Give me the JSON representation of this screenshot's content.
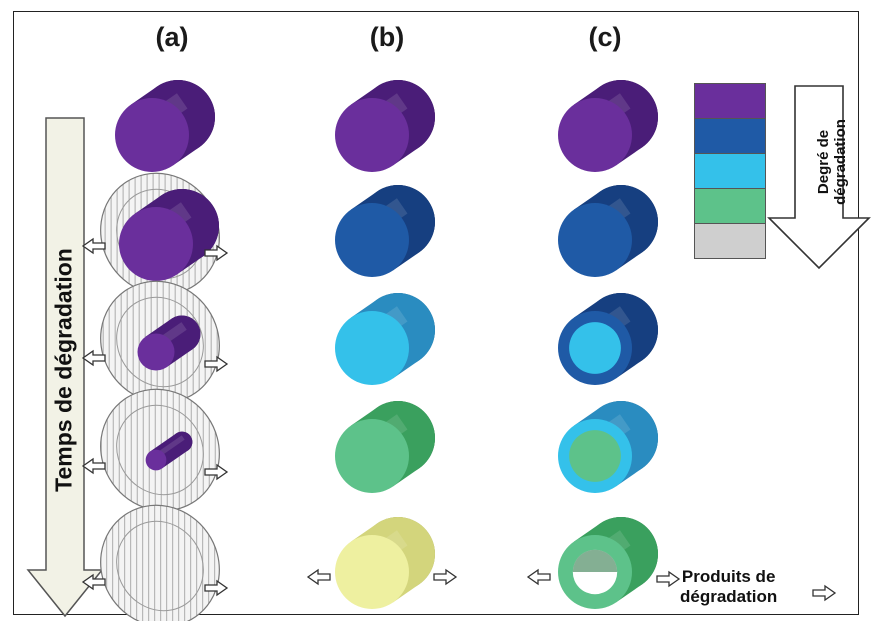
{
  "columns": [
    "(a)",
    "(b)",
    "(c)"
  ],
  "axis_time": "Temps de dégradation",
  "legend": {
    "title_line1": "Degré de",
    "title_line2": "dégradation",
    "colors": [
      "#6a2f9c",
      "#1f5aa6",
      "#34c1ea",
      "#5dc28a",
      "#cfcfcf"
    ]
  },
  "products_label_line1": "Produits de",
  "products_label_line2": "dégradation",
  "palette": {
    "purple": {
      "face": "#6a2f9c",
      "body": "#4a1d78",
      "dark": "#2a0d48"
    },
    "blue": {
      "face": "#1f5aa6",
      "body": "#163f80",
      "dark": "#0b2350"
    },
    "cyan": {
      "face": "#34c1ea",
      "body": "#2a8cc0",
      "dark": "#155e86"
    },
    "green": {
      "face": "#5dc28a",
      "body": "#3aa05e",
      "dark": "#1f6e3a"
    },
    "yellow": {
      "face": "#eef0a0",
      "body": "#d3d57c",
      "dark": "#9ea052"
    },
    "grey": {
      "face": "#d9d9d9",
      "body": "#bdbdbd",
      "dark": "#8f8f8f"
    }
  },
  "column_a_rows": [
    {
      "core": "purple",
      "mesh": false
    },
    {
      "core": "purple",
      "mesh": true,
      "core_scale": 1.0
    },
    {
      "core": "purple",
      "mesh": true,
      "core_scale": 0.5
    },
    {
      "core": "purple",
      "mesh": true,
      "core_scale": 0.28
    },
    {
      "core": "none",
      "mesh": true,
      "core_scale": 0
    }
  ],
  "column_b_rows": [
    "purple",
    "blue",
    "cyan",
    "green",
    "yellow"
  ],
  "column_c_rows": [
    {
      "outer": "purple"
    },
    {
      "outer": "blue"
    },
    {
      "outer": "blue",
      "inner": "cyan"
    },
    {
      "outer": "cyan",
      "inner": "green"
    },
    {
      "outer": "green",
      "hollow": true
    }
  ]
}
